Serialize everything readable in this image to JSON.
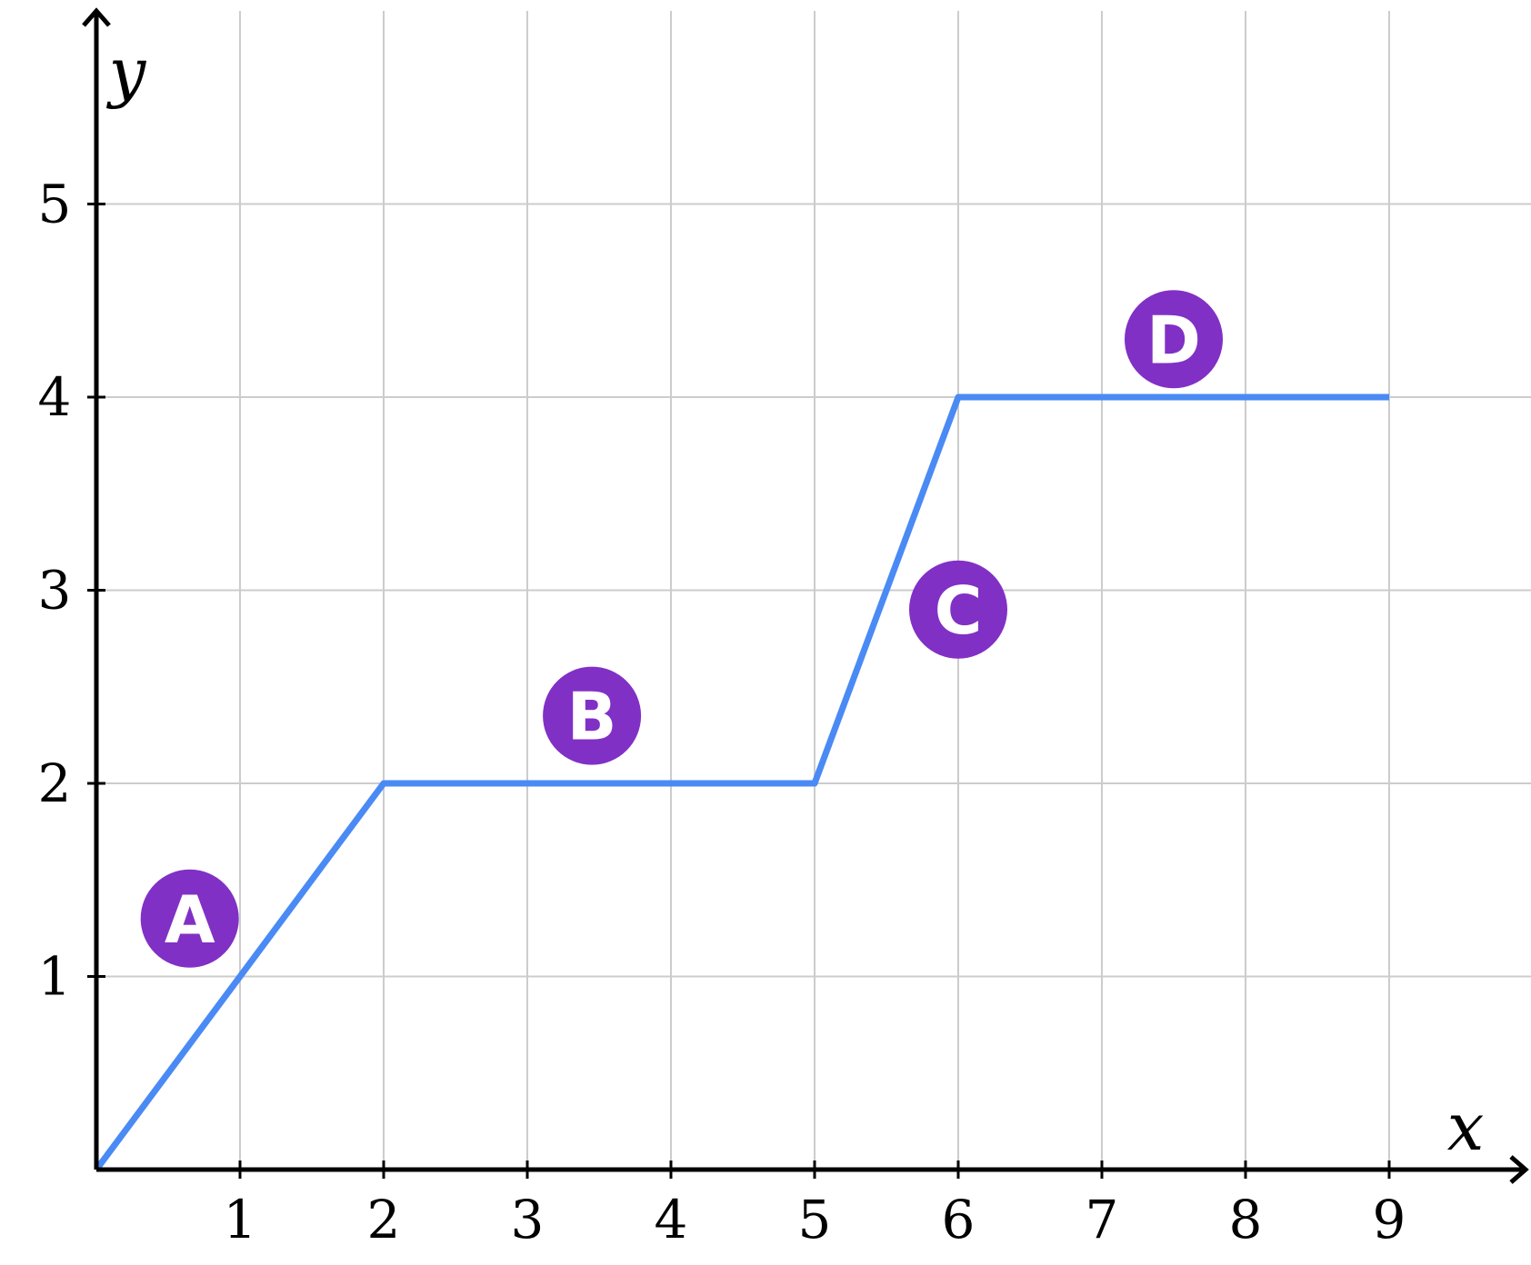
{
  "chart_data": {
    "type": "line",
    "title": "",
    "xlabel": "x",
    "ylabel": "y",
    "xlim": [
      0,
      10
    ],
    "ylim": [
      0,
      6
    ],
    "x_ticks": [
      1,
      2,
      3,
      4,
      5,
      6,
      7,
      8,
      9
    ],
    "y_ticks": [
      1,
      2,
      3,
      4,
      5
    ],
    "x_tick_labels": [
      "1",
      "2",
      "3",
      "4",
      "5",
      "6",
      "7",
      "8",
      "9"
    ],
    "y_tick_labels": [
      "1",
      "2",
      "3",
      "4",
      "5"
    ],
    "grid": true,
    "series": [
      {
        "x": [
          0,
          2,
          5,
          6,
          9
        ],
        "y": [
          0,
          2,
          2,
          4,
          4
        ],
        "color": "#4a8af4"
      }
    ],
    "annotations": [
      {
        "label": "A",
        "x": 0.65,
        "y": 1.3
      },
      {
        "label": "B",
        "x": 3.45,
        "y": 2.35
      },
      {
        "label": "C",
        "x": 6.0,
        "y": 2.9
      },
      {
        "label": "D",
        "x": 7.5,
        "y": 4.3
      }
    ],
    "annotation_color": "#8130c5"
  }
}
